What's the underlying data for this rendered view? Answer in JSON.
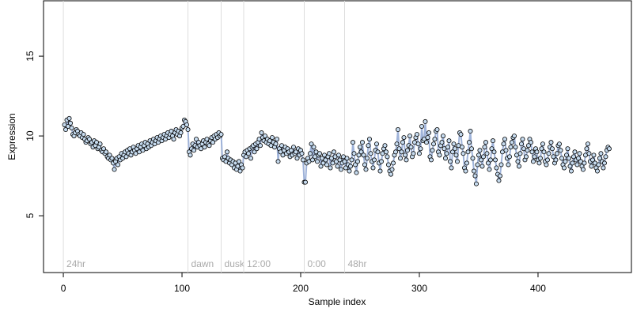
{
  "chart_data": {
    "type": "line",
    "x_label": "Sample index",
    "y_label": "Expression",
    "xlim": [
      -16.7,
      478.7
    ],
    "ylim": [
      1.44,
      18.47
    ],
    "xticks": [
      0,
      100,
      200,
      300,
      400
    ],
    "yticks": [
      5,
      10,
      15
    ],
    "markers": [
      {
        "x": 0,
        "label": "24hr"
      },
      {
        "x": 105,
        "label": "dawn"
      },
      {
        "x": 133,
        "label": "dusk"
      },
      {
        "x": 152,
        "label": "12:00"
      },
      {
        "x": 203,
        "label": "0:00"
      },
      {
        "x": 237,
        "label": "48hr"
      }
    ],
    "marker_color": "#dddddd",
    "x": [
      1,
      2,
      3,
      4,
      5,
      6,
      7,
      8,
      9,
      10,
      11,
      12,
      13,
      14,
      15,
      16,
      17,
      18,
      19,
      20,
      21,
      22,
      23,
      24,
      25,
      26,
      27,
      28,
      29,
      30,
      31,
      32,
      33,
      34,
      35,
      36,
      37,
      38,
      39,
      40,
      41,
      42,
      43,
      44,
      45,
      46,
      47,
      48,
      49,
      50,
      51,
      52,
      53,
      54,
      55,
      56,
      57,
      58,
      59,
      60,
      61,
      62,
      63,
      64,
      65,
      66,
      67,
      68,
      69,
      70,
      71,
      72,
      73,
      74,
      75,
      76,
      77,
      78,
      79,
      80,
      81,
      82,
      83,
      84,
      85,
      86,
      87,
      88,
      89,
      90,
      91,
      92,
      93,
      94,
      95,
      96,
      97,
      98,
      99,
      100,
      101,
      102,
      103,
      104,
      105,
      106,
      107,
      108,
      109,
      110,
      111,
      112,
      113,
      114,
      115,
      116,
      117,
      118,
      119,
      120,
      121,
      122,
      123,
      124,
      125,
      126,
      127,
      128,
      129,
      130,
      131,
      132,
      133,
      134,
      135,
      136,
      137,
      138,
      139,
      140,
      141,
      142,
      143,
      144,
      145,
      146,
      147,
      148,
      149,
      150,
      151,
      152,
      153,
      154,
      155,
      156,
      157,
      158,
      159,
      160,
      161,
      162,
      163,
      164,
      165,
      166,
      167,
      168,
      169,
      170,
      171,
      172,
      173,
      174,
      175,
      176,
      177,
      178,
      179,
      180,
      181,
      182,
      183,
      184,
      185,
      186,
      187,
      188,
      189,
      190,
      191,
      192,
      193,
      194,
      195,
      196,
      197,
      198,
      199,
      200,
      201,
      202,
      203,
      204,
      205,
      206,
      207,
      208,
      209,
      210,
      211,
      212,
      213,
      214,
      215,
      216,
      217,
      218,
      219,
      220,
      221,
      222,
      223,
      224,
      225,
      226,
      227,
      228,
      229,
      230,
      231,
      232,
      233,
      234,
      235,
      236,
      237,
      238,
      239,
      240,
      241,
      242,
      243,
      244,
      245,
      246,
      247,
      248,
      249,
      250,
      251,
      252,
      253,
      254,
      255,
      256,
      257,
      258,
      259,
      260,
      261,
      262,
      263,
      264,
      265,
      266,
      267,
      268,
      269,
      270,
      271,
      272,
      273,
      274,
      275,
      276,
      277,
      278,
      279,
      280,
      281,
      282,
      283,
      284,
      285,
      286,
      287,
      288,
      289,
      290,
      291,
      292,
      293,
      294,
      295,
      296,
      297,
      298,
      299,
      300,
      301,
      302,
      303,
      304,
      305,
      306,
      307,
      308,
      309,
      310,
      311,
      312,
      313,
      314,
      315,
      316,
      317,
      318,
      319,
      320,
      321,
      322,
      323,
      324,
      325,
      326,
      327,
      328,
      329,
      330,
      331,
      332,
      333,
      334,
      335,
      336,
      337,
      338,
      339,
      340,
      341,
      342,
      343,
      344,
      345,
      346,
      347,
      348,
      349,
      350,
      351,
      352,
      353,
      354,
      355,
      356,
      357,
      358,
      359,
      360,
      361,
      362,
      363,
      364,
      365,
      366,
      367,
      368,
      369,
      370,
      371,
      372,
      373,
      374,
      375,
      376,
      377,
      378,
      379,
      380,
      381,
      382,
      383,
      384,
      385,
      386,
      387,
      388,
      389,
      390,
      391,
      392,
      393,
      394,
      395,
      396,
      397,
      398,
      399,
      400,
      401,
      402,
      403,
      404,
      405,
      406,
      407,
      408,
      409,
      410,
      411,
      412,
      413,
      414,
      415,
      416,
      417,
      418,
      419,
      420,
      421,
      422,
      423,
      424,
      425,
      426,
      427,
      428,
      429,
      430,
      431,
      432,
      433,
      434,
      435,
      436,
      437,
      438,
      439,
      440,
      441,
      442,
      443,
      444,
      445,
      446,
      447,
      448,
      449,
      450,
      451,
      452,
      453,
      454,
      455,
      456,
      457,
      458,
      459,
      460
    ],
    "series": [
      {
        "color": "#9fb3d9",
        "point_color": "#c6dbef",
        "values": [
          10.7,
          10.4,
          11.0,
          10.6,
          11.1,
          10.8,
          10.5,
          10.1,
          10.0,
          10.2,
          10.4,
          10.3,
          10.1,
          10.0,
          10.2,
          9.9,
          10.1,
          9.8,
          9.6,
          9.7,
          9.9,
          9.8,
          9.5,
          9.6,
          9.3,
          9.7,
          9.4,
          9.6,
          9.2,
          9.3,
          9.5,
          9.1,
          9.0,
          9.2,
          8.9,
          9.0,
          8.7,
          8.6,
          8.8,
          8.5,
          8.6,
          8.3,
          7.9,
          8.4,
          8.6,
          8.2,
          8.7,
          8.5,
          8.9,
          8.6,
          8.8,
          9.0,
          8.7,
          9.1,
          8.9,
          9.2,
          8.8,
          9.0,
          9.3,
          9.1,
          8.9,
          9.2,
          9.4,
          9.0,
          9.3,
          9.5,
          9.1,
          9.4,
          9.6,
          9.2,
          9.5,
          9.3,
          9.7,
          9.4,
          9.6,
          9.8,
          9.5,
          9.7,
          9.9,
          9.6,
          9.8,
          10.0,
          9.7,
          9.9,
          10.1,
          9.8,
          10.0,
          10.2,
          9.9,
          10.1,
          10.3,
          10.0,
          9.8,
          10.2,
          10.4,
          10.1,
          10.3,
          10.0,
          10.2,
          10.5,
          10.6,
          11.0,
          10.9,
          10.7,
          10.4,
          9.0,
          8.8,
          9.2,
          9.5,
          9.1,
          9.4,
          9.8,
          9.3,
          9.6,
          9.4,
          9.2,
          9.5,
          9.7,
          9.3,
          9.6,
          9.8,
          9.5,
          9.4,
          9.7,
          9.9,
          9.6,
          10.0,
          9.8,
          10.1,
          9.9,
          10.2,
          10.0,
          10.1,
          8.6,
          8.5,
          8.7,
          8.4,
          9.0,
          8.6,
          8.3,
          8.5,
          8.2,
          8.4,
          8.0,
          8.3,
          7.9,
          8.1,
          8.4,
          7.8,
          8.2,
          8.0,
          8.8,
          9.0,
          8.7,
          9.1,
          8.9,
          9.2,
          8.6,
          9.3,
          9.4,
          9.0,
          9.5,
          9.2,
          9.6,
          9.8,
          9.4,
          10.2,
          9.9,
          9.7,
          10.0,
          9.6,
          9.8,
          9.5,
          9.7,
          9.4,
          9.9,
          9.6,
          9.3,
          9.5,
          9.8,
          8.4,
          9.2,
          9.0,
          9.4,
          8.8,
          9.1,
          9.3,
          8.9,
          9.2,
          9.0,
          8.7,
          9.1,
          8.8,
          9.3,
          8.9,
          9.0,
          8.6,
          9.2,
          8.8,
          9.1,
          8.9,
          8.5,
          7.1,
          7.1,
          8.3,
          8.6,
          8.4,
          8.9,
          9.5,
          8.5,
          9.3,
          8.7,
          9.0,
          8.4,
          8.8,
          8.9,
          8.1,
          8.6,
          8.3,
          8.8,
          8.5,
          8.2,
          8.7,
          8.9,
          8.0,
          8.6,
          8.3,
          9.0,
          8.7,
          8.4,
          8.1,
          8.8,
          8.5,
          7.9,
          8.3,
          8.7,
          8.4,
          8.0,
          8.6,
          8.2,
          7.8,
          8.1,
          8.5,
          9.6,
          8.9,
          8.2,
          7.7,
          8.4,
          8.8,
          9.3,
          9.0,
          9.6,
          8.8,
          8.2,
          7.9,
          8.6,
          9.4,
          9.8,
          8.9,
          8.4,
          8.0,
          8.5,
          9.1,
          9.5,
          9.0,
          8.3,
          7.8,
          8.4,
          8.9,
          9.2,
          9.4,
          9.0,
          8.7,
          8.2,
          7.8,
          7.6,
          7.9,
          8.3,
          8.8,
          9.0,
          9.5,
          10.4,
          9.2,
          8.6,
          9.0,
          9.6,
          9.9,
          8.8,
          8.5,
          9.1,
          9.4,
          10.0,
          9.3,
          8.7,
          8.9,
          9.6,
          9.9,
          10.1,
          9.5,
          8.9,
          9.2,
          10.6,
          9.7,
          9.8,
          10.9,
          9.6,
          9.9,
          10.2,
          8.7,
          8.5,
          9.1,
          9.5,
          9.8,
          10.3,
          10.4,
          9.0,
          8.8,
          9.4,
          9.6,
          10.0,
          9.2,
          8.6,
          8.9,
          9.3,
          9.7,
          8.4,
          8.0,
          9.0,
          9.5,
          9.2,
          8.8,
          8.4,
          9.4,
          10.2,
          10.1,
          9.3,
          8.9,
          8.0,
          7.8,
          8.3,
          9.0,
          9.6,
          10.3,
          9.2,
          8.6,
          7.8,
          7.5,
          7.0,
          8.2,
          8.8,
          9.1,
          8.5,
          8.1,
          8.7,
          9.3,
          9.6,
          8.9,
          8.3,
          7.9,
          8.5,
          9.2,
          9.7,
          9.0,
          8.5,
          8.0,
          7.6,
          7.2,
          7.5,
          8.2,
          9.0,
          9.5,
          9.8,
          9.1,
          8.6,
          8.2,
          8.7,
          9.3,
          9.6,
          9.9,
          10.0,
          9.3,
          8.8,
          8.4,
          8.1,
          8.9,
          9.5,
          9.8,
          9.2,
          8.5,
          8.7,
          9.1,
          9.4,
          9.8,
          9.6,
          9.0,
          8.4,
          8.7,
          9.2,
          9.0,
          8.5,
          8.3,
          8.6,
          9.2,
          9.5,
          9.0,
          8.4,
          8.2,
          8.5,
          8.9,
          9.3,
          9.6,
          9.2,
          8.7,
          8.3,
          8.5,
          8.9,
          9.4,
          9.5,
          9.1,
          8.6,
          8.2,
          8.0,
          8.4,
          8.8,
          9.2,
          8.6,
          8.1,
          7.8,
          8.3,
          8.7,
          9.0,
          8.5,
          8.2,
          8.6,
          8.9,
          8.4,
          8.1,
          7.9,
          8.3,
          8.8,
          9.2,
          9.5,
          8.9,
          8.4,
          8.1,
          8.5,
          8.8,
          8.3,
          8.0,
          7.8,
          8.2,
          8.6,
          8.9,
          8.4,
          8.0,
          8.3,
          8.7,
          9.1,
          9.3,
          9.2
        ]
      }
    ]
  }
}
